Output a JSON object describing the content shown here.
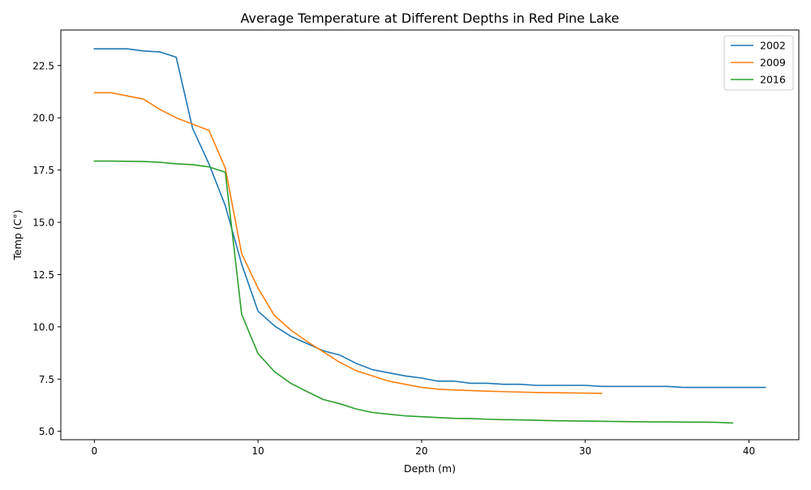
{
  "chart_data": {
    "type": "line",
    "title": "Average Temperature at Different Depths in Red Pine Lake",
    "xlabel": "Depth (m)",
    "ylabel": "Temp (C°)",
    "xlim": [
      -2.05,
      43.05
    ],
    "ylim": [
      4.6,
      24.2
    ],
    "xticks": [
      0,
      10,
      20,
      30,
      40
    ],
    "xtick_labels": [
      "0",
      "10",
      "20",
      "30",
      "40"
    ],
    "yticks": [
      5.0,
      7.5,
      10.0,
      12.5,
      15.0,
      17.5,
      20.0,
      22.5
    ],
    "ytick_labels": [
      "5.0",
      "7.5",
      "10.0",
      "12.5",
      "15.0",
      "17.5",
      "20.0",
      "22.5"
    ],
    "grid": false,
    "legend_position": "top-right",
    "series": [
      {
        "name": "2002",
        "color": "#1f77b4",
        "x": [
          0,
          1,
          2,
          3,
          4,
          5,
          6,
          7,
          8,
          9,
          10,
          11,
          12,
          13,
          14,
          15,
          16,
          17,
          18,
          19,
          20,
          21,
          22,
          23,
          24,
          25,
          26,
          27,
          28,
          29,
          30,
          31,
          32,
          33,
          34,
          35,
          36,
          37,
          38,
          39,
          40,
          41
        ],
        "y": [
          23.3,
          23.3,
          23.3,
          23.2,
          23.15,
          22.9,
          19.5,
          17.8,
          15.8,
          13.0,
          10.75,
          10.05,
          9.55,
          9.2,
          8.85,
          8.65,
          8.25,
          7.95,
          7.8,
          7.65,
          7.55,
          7.4,
          7.4,
          7.3,
          7.3,
          7.25,
          7.25,
          7.2,
          7.2,
          7.2,
          7.2,
          7.15,
          7.15,
          7.15,
          7.15,
          7.15,
          7.1,
          7.1,
          7.1,
          7.1,
          7.1,
          7.1
        ]
      },
      {
        "name": "2009",
        "color": "#ff7f0e",
        "x": [
          0,
          1,
          2,
          3,
          4,
          5,
          6,
          7,
          8,
          9,
          10,
          11,
          12,
          13,
          14,
          15,
          16,
          17,
          18,
          19,
          20,
          21,
          22,
          23,
          24,
          25,
          26,
          27,
          28,
          29,
          30,
          31
        ],
        "y": [
          21.2,
          21.2,
          21.05,
          20.9,
          20.4,
          20.0,
          19.7,
          19.4,
          17.6,
          13.5,
          11.85,
          10.55,
          9.85,
          9.3,
          8.8,
          8.3,
          7.9,
          7.65,
          7.4,
          7.25,
          7.1,
          7.02,
          6.98,
          6.95,
          6.92,
          6.9,
          6.88,
          6.86,
          6.85,
          6.84,
          6.83,
          6.82
        ]
      },
      {
        "name": "2016",
        "color": "#2ca02c",
        "x": [
          0,
          1,
          2,
          3,
          4,
          5,
          6,
          7,
          8,
          9,
          10,
          11,
          12,
          13,
          14,
          15,
          16,
          17,
          18,
          19,
          20,
          21,
          22,
          23,
          24,
          25,
          26,
          27,
          28,
          29,
          30,
          31,
          32,
          33,
          34,
          35,
          36,
          37,
          38,
          39
        ],
        "y": [
          17.93,
          17.93,
          17.92,
          17.91,
          17.87,
          17.8,
          17.76,
          17.65,
          17.4,
          10.6,
          8.72,
          7.86,
          7.3,
          6.9,
          6.52,
          6.32,
          6.07,
          5.9,
          5.82,
          5.74,
          5.7,
          5.66,
          5.62,
          5.61,
          5.58,
          5.56,
          5.55,
          5.53,
          5.51,
          5.5,
          5.49,
          5.48,
          5.47,
          5.46,
          5.45,
          5.45,
          5.44,
          5.44,
          5.43,
          5.4
        ]
      }
    ]
  }
}
